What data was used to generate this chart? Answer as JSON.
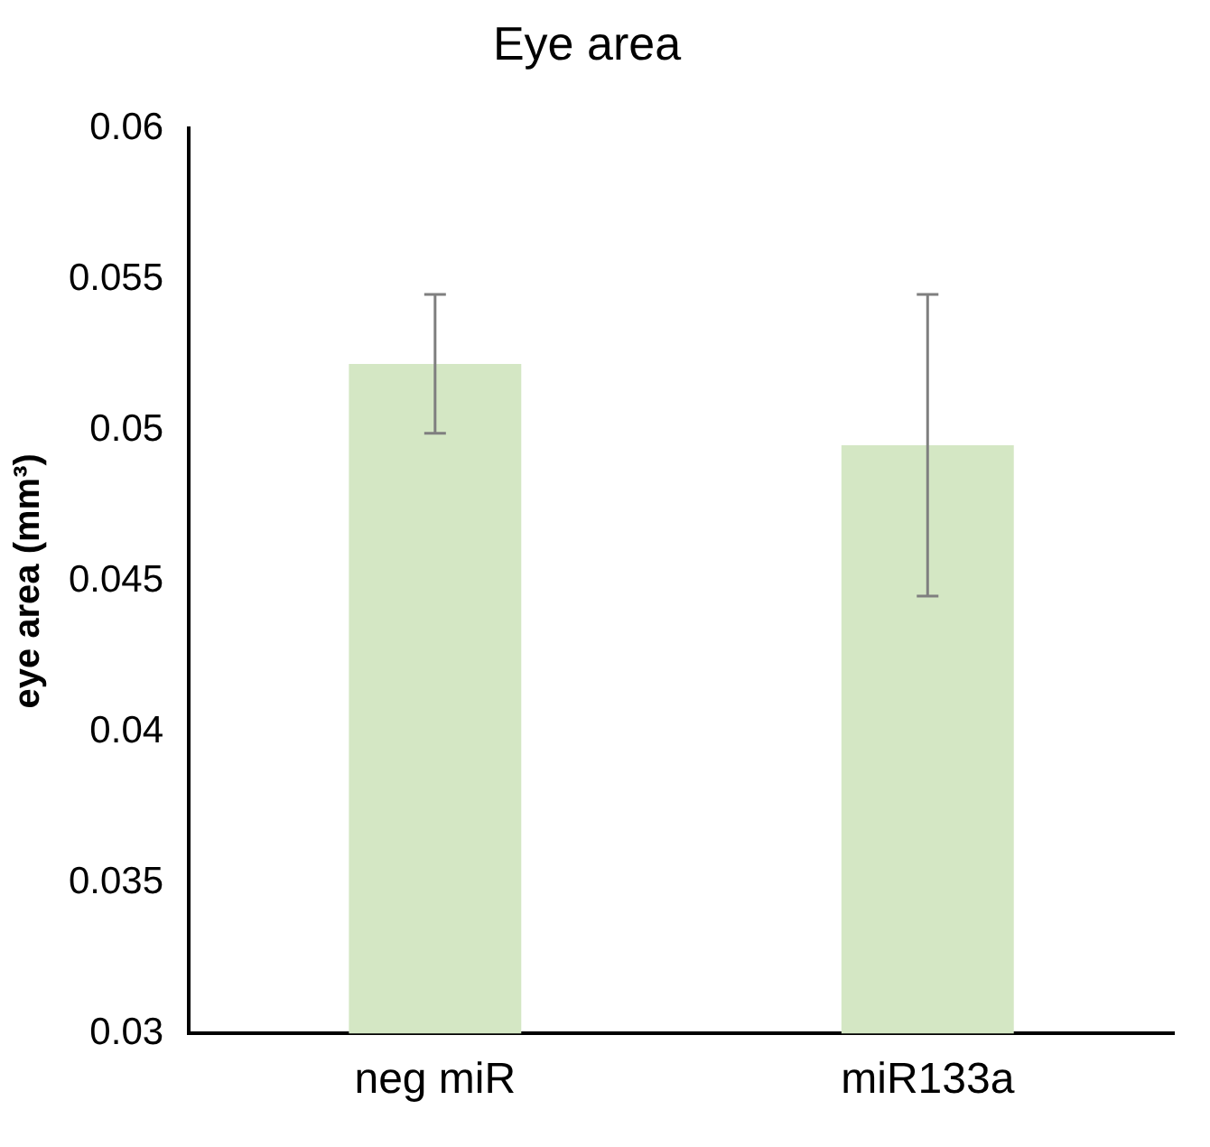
{
  "chart_data": {
    "type": "bar",
    "title": "Eye area",
    "ylabel": "eye area (mm³)",
    "categories": [
      "neg miR",
      "miR133a"
    ],
    "values": [
      0.0522,
      0.0495
    ],
    "errors": [
      0.0023,
      0.005
    ],
    "color": "#d4e7c4",
    "ylim": [
      0.03,
      0.06
    ],
    "yticks": [
      0.03,
      0.035,
      0.04,
      0.045,
      0.05,
      0.055,
      0.06
    ],
    "grid": false,
    "legend": false
  }
}
